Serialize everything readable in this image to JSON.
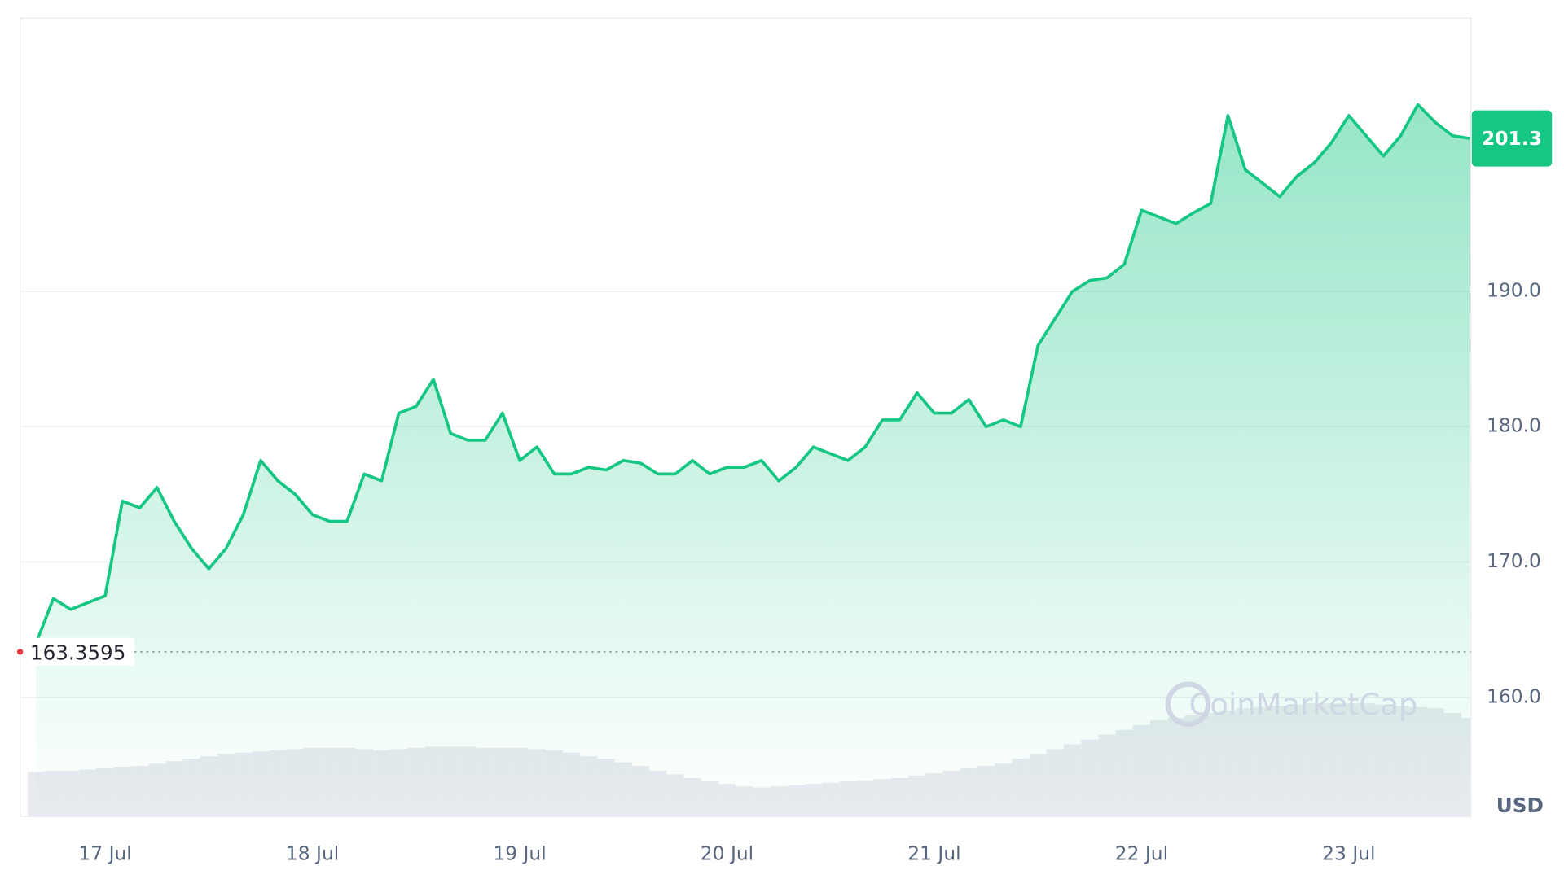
{
  "chart_data": {
    "type": "line",
    "color": "#16c784",
    "categories": [
      null,
      null,
      null,
      null,
      "17 Jul",
      null,
      null,
      null,
      null,
      null,
      null,
      null,
      null,
      null,
      null,
      null,
      "18 Jul",
      null,
      null,
      null,
      null,
      null,
      null,
      null,
      null,
      null,
      null,
      null,
      "19 Jul",
      null,
      null,
      null,
      null,
      null,
      null,
      null,
      null,
      null,
      null,
      null,
      "20 Jul",
      null,
      null,
      null,
      null,
      null,
      null,
      null,
      null,
      null,
      null,
      null,
      "21 Jul",
      null,
      null,
      null,
      null,
      null,
      null,
      null,
      null,
      null,
      null,
      null,
      "22 Jul",
      null,
      null,
      null,
      null,
      null,
      null,
      null,
      null,
      null,
      null,
      null,
      "23 Jul",
      null,
      null,
      null,
      null,
      null,
      null,
      null
    ],
    "values": [
      164,
      167.3,
      166.5,
      167,
      167.5,
      174.5,
      174,
      175.5,
      173,
      171,
      169.5,
      171,
      173.5,
      177.5,
      176,
      175,
      173.5,
      173,
      173,
      176.5,
      176,
      181,
      181.5,
      183.5,
      179.5,
      179,
      179,
      181,
      177.5,
      178.5,
      176.5,
      176.5,
      177,
      176.8,
      177.5,
      177.3,
      176.5,
      176.5,
      177.5,
      176.5,
      177,
      177,
      177.5,
      176,
      177,
      178.5,
      178,
      177.5,
      178.5,
      180.5,
      180.5,
      182.5,
      181,
      181,
      182,
      180,
      180.5,
      180,
      186,
      188,
      190,
      190.8,
      191,
      192,
      196,
      195.5,
      195,
      195.8,
      196.5,
      203,
      199,
      198,
      197,
      198.5,
      199.5,
      201,
      203,
      201.5,
      200,
      201.5,
      203.8,
      202.5,
      201.5,
      201.3
    ],
    "volume": [
      37,
      38,
      38,
      39,
      40,
      41,
      42,
      44,
      46,
      48,
      50,
      52,
      53,
      54,
      55,
      56,
      57,
      57,
      57,
      56,
      55,
      56,
      57,
      58,
      58,
      58,
      57,
      57,
      57,
      56,
      55,
      53,
      50,
      48,
      45,
      42,
      38,
      35,
      32,
      29,
      27,
      25,
      24,
      25,
      26,
      27,
      28,
      29,
      30,
      31,
      32,
      34,
      36,
      38,
      40,
      42,
      44,
      48,
      52,
      56,
      60,
      64,
      68,
      72,
      76,
      80,
      82,
      84,
      86,
      88,
      90,
      91,
      92,
      93,
      94,
      94,
      94,
      94,
      93,
      92,
      91,
      90,
      86,
      82
    ],
    "volume_lim": [
      0,
      100
    ],
    "volume_color": "#e8eaef",
    "ylim": [
      151.2,
      210.2
    ],
    "yticks": [
      {
        "value": 160,
        "label": "160.0"
      },
      {
        "value": 170,
        "label": "170.0"
      },
      {
        "value": 180,
        "label": "180.0"
      },
      {
        "value": 190,
        "label": "190.0"
      }
    ],
    "grid": true,
    "reference_line": 163.3595,
    "y_unit": "USD",
    "watermark": "CoinMarketCap"
  }
}
